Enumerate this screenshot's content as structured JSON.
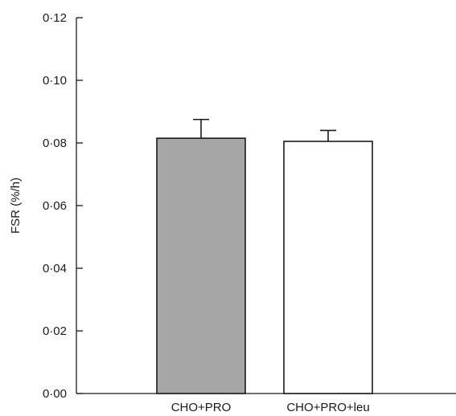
{
  "chart_data": {
    "type": "bar",
    "title": "",
    "xlabel": "",
    "ylabel": "FSR (%/h)",
    "ylim": [
      0,
      0.12
    ],
    "yticks": [
      "0·00",
      "0·02",
      "0·04",
      "0·06",
      "0·08",
      "0·10",
      "0·12"
    ],
    "ytick_values": [
      0,
      0.02,
      0.04,
      0.06,
      0.08,
      0.1,
      0.12
    ],
    "categories": [
      "CHO+PRO",
      "CHO+PRO+leu"
    ],
    "values": [
      0.0815,
      0.0805
    ],
    "errors": [
      0.006,
      0.0035
    ],
    "bar_colors": [
      "#a6a6a6",
      "#ffffff"
    ],
    "grid": false,
    "legend": "none"
  }
}
